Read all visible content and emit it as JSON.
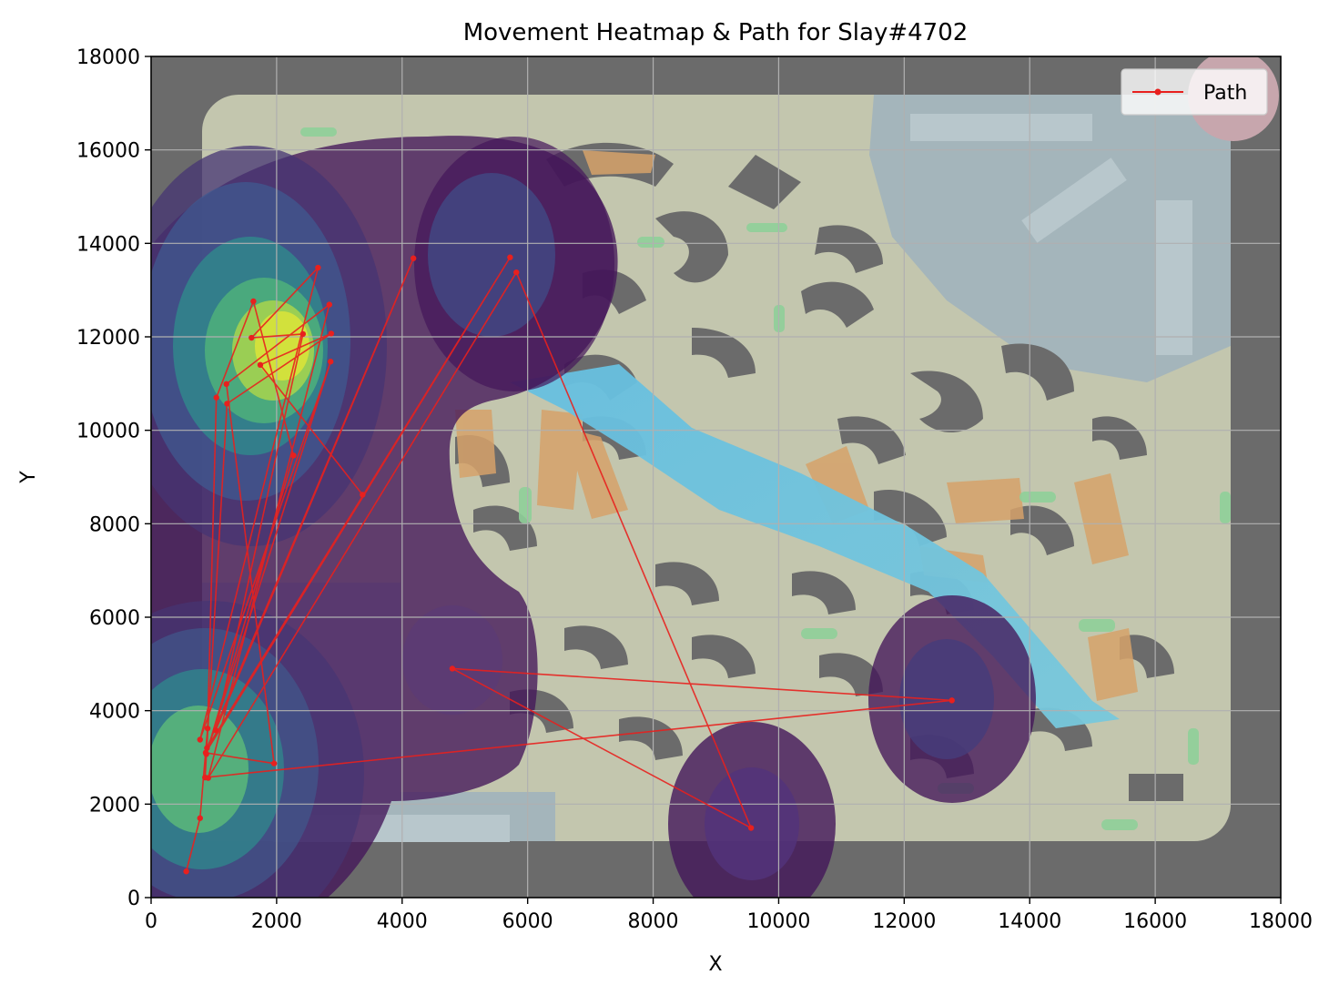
{
  "chart_data": {
    "type": "line",
    "title": "Movement Heatmap & Path for Slay#4702",
    "xlabel": "X",
    "ylabel": "Y",
    "xlim": [
      0,
      18000
    ],
    "ylim": [
      0,
      18000
    ],
    "xticks": [
      0,
      2000,
      4000,
      6000,
      8000,
      10000,
      12000,
      14000,
      16000,
      18000
    ],
    "yticks": [
      0,
      2000,
      4000,
      6000,
      8000,
      10000,
      12000,
      14000,
      16000,
      18000
    ],
    "xtick_labels": [
      "0",
      "2000",
      "4000",
      "6000",
      "8000",
      "10000",
      "12000",
      "14000",
      "16000",
      "18000"
    ],
    "ytick_labels": [
      "0",
      "2000",
      "4000",
      "6000",
      "8000",
      "10000",
      "12000",
      "14000",
      "16000",
      "18000"
    ],
    "grid": true,
    "legend": {
      "position": "top-right",
      "entries": [
        "Path"
      ]
    },
    "background": "map image with density contours (viridis)",
    "series": [
      {
        "name": "Path",
        "color": "#e8201e",
        "x": [
          560,
          780,
          900,
          1040,
          1630,
          2270,
          880,
          2860,
          780,
          2660,
          1600,
          2420,
          1030,
          4180,
          890,
          5720,
          870,
          1960,
          1200,
          2840,
          910,
          5820,
          9560,
          4800,
          12760,
          860,
          1210,
          2870,
          1740,
          3370
        ],
        "y": [
          560,
          1700,
          3620,
          10700,
          12760,
          9460,
          3070,
          11470,
          3380,
          13480,
          11980,
          12060,
          3580,
          13680,
          3200,
          13700,
          3100,
          2870,
          10990,
          12690,
          2560,
          13380,
          1490,
          4900,
          4220,
          2570,
          10570,
          12070,
          11400,
          8620
        ]
      }
    ],
    "density_hotspots": [
      {
        "x": 2050,
        "y": 11600,
        "level": "high"
      },
      {
        "x": 900,
        "y": 2700,
        "level": "medium"
      },
      {
        "x": 4900,
        "y": 13500,
        "level": "low"
      },
      {
        "x": 4750,
        "y": 4900,
        "level": "low"
      },
      {
        "x": 12750,
        "y": 4250,
        "level": "low"
      },
      {
        "x": 9600,
        "y": 1550,
        "level": "low"
      }
    ]
  },
  "colors": {
    "path": "#e8201e",
    "map_wall": "#6b6b6b",
    "map_floor": "#c3c6ae",
    "river": "#6ec4dc",
    "structure": "#a4b5bb",
    "orange_zone": "#d6a26a",
    "viridis_dark": "#44165a",
    "viridis_mid": "#3f6c9a",
    "viridis_green": "#5cb879",
    "viridis_yellow": "#d8e33a"
  }
}
